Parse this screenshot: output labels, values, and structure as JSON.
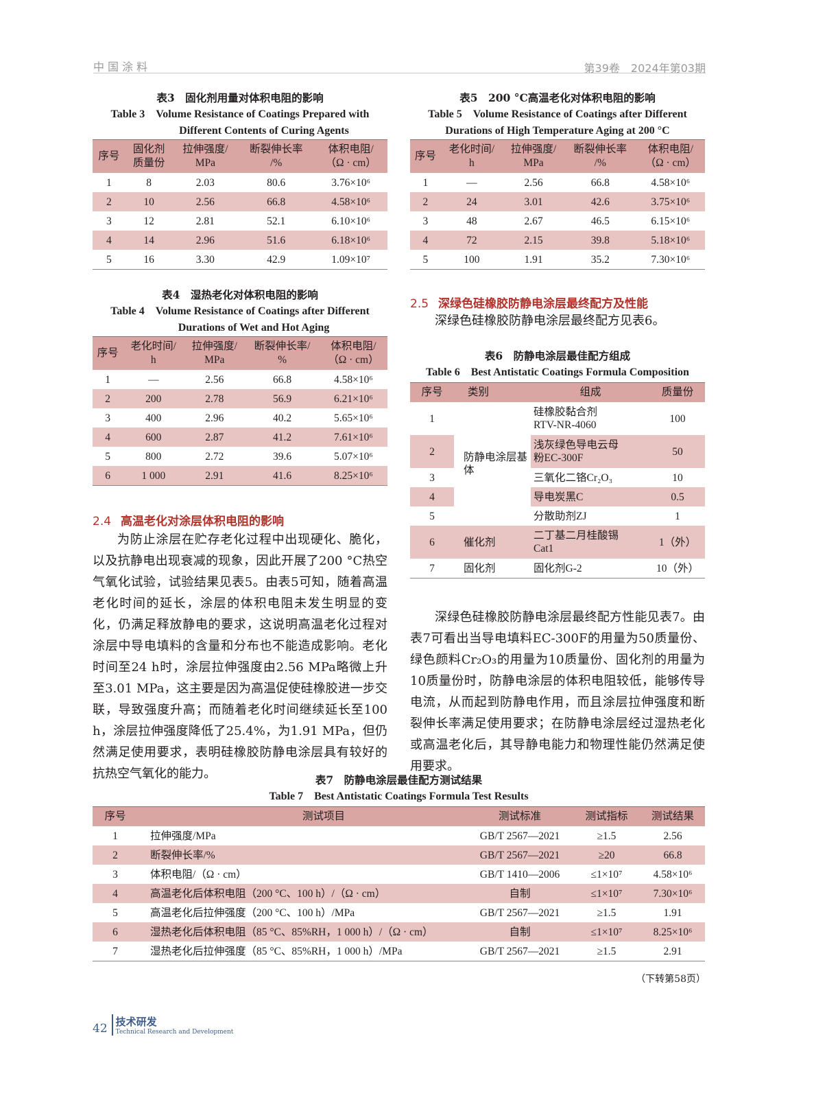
{
  "header": {
    "journal": "中国涂料",
    "issue": "第39卷　2024年第03期"
  },
  "table3": {
    "title_cn": "表3　固化剂用量对体积电阻的影响",
    "title_en1": "Table 3　Volume Resistance of Coatings Prepared with",
    "title_en2": "Different Contents of Curing Agents",
    "headers": [
      [
        "序号"
      ],
      [
        "固化剂",
        "质量份"
      ],
      [
        "拉伸强度/",
        "MPa"
      ],
      [
        "断裂伸长率",
        "/%"
      ],
      [
        "体积电阻/",
        "（Ω · cm）"
      ]
    ],
    "rows": [
      [
        "1",
        "8",
        "2.03",
        "80.6",
        "3.76×10⁶"
      ],
      [
        "2",
        "10",
        "2.56",
        "66.8",
        "4.58×10⁶"
      ],
      [
        "3",
        "12",
        "2.81",
        "52.1",
        "6.10×10⁶"
      ],
      [
        "4",
        "14",
        "2.96",
        "51.6",
        "6.18×10⁶"
      ],
      [
        "5",
        "16",
        "3.30",
        "42.9",
        "1.09×10⁷"
      ]
    ]
  },
  "table4": {
    "title_cn": "表4　湿热老化对体积电阻的影响",
    "title_en1": "Table 4　Volume Resistance of Coatings after Different",
    "title_en2": "Durations of Wet and Hot Aging",
    "headers": [
      [
        "序号"
      ],
      [
        "老化时间/",
        "h"
      ],
      [
        "拉伸强度/",
        "MPa"
      ],
      [
        "断裂伸长率/",
        "%"
      ],
      [
        "体积电阻/",
        "（Ω · cm）"
      ]
    ],
    "rows": [
      [
        "1",
        "—",
        "2.56",
        "66.8",
        "4.58×10⁶"
      ],
      [
        "2",
        "200",
        "2.78",
        "56.9",
        "6.21×10⁶"
      ],
      [
        "3",
        "400",
        "2.96",
        "40.2",
        "5.65×10⁶"
      ],
      [
        "4",
        "600",
        "2.87",
        "41.2",
        "7.61×10⁶"
      ],
      [
        "5",
        "800",
        "2.72",
        "39.6",
        "5.07×10⁶"
      ],
      [
        "6",
        "1 000",
        "2.91",
        "41.6",
        "8.25×10⁶"
      ]
    ]
  },
  "table5": {
    "title_cn": "表5　200 °C高温老化对体积电阻的影响",
    "title_en1": "Table 5　Volume Resistance of Coatings after Different",
    "title_en2": "Durations of High Temperature Aging at 200 °C",
    "headers": [
      [
        "序号"
      ],
      [
        "老化时间/",
        "h"
      ],
      [
        "拉伸强度/",
        "MPa"
      ],
      [
        "断裂伸长率",
        "/%"
      ],
      [
        "体积电阻/",
        "（Ω · cm）"
      ]
    ],
    "rows": [
      [
        "1",
        "—",
        "2.56",
        "66.8",
        "4.58×10⁶"
      ],
      [
        "2",
        "24",
        "3.01",
        "42.6",
        "3.75×10⁶"
      ],
      [
        "3",
        "48",
        "2.67",
        "46.5",
        "6.15×10⁶"
      ],
      [
        "4",
        "72",
        "2.15",
        "39.8",
        "5.18×10⁶"
      ],
      [
        "5",
        "100",
        "1.91",
        "35.2",
        "7.30×10⁶"
      ]
    ]
  },
  "section24": {
    "num": "2.4",
    "title": "高温老化对涂层体积电阻的影响",
    "text": "为防止涂层在贮存老化过程中出现硬化、脆化，以及抗静电出现衰减的现象，因此开展了200 °C热空气氧化试验，试验结果见表5。由表5可知，随着高温老化时间的延长，涂层的体积电阻未发生明显的变化，仍满足释放静电的要求，这说明高温老化过程对涂层中导电填料的含量和分布也不能造成影响。老化时间至24 h时，涂层拉伸强度由2.56 MPa略微上升至3.01 MPa，这主要是因为高温促使硅橡胶进一步交联，导致强度升高；而随着老化时间继续延长至100 h，涂层拉伸强度降低了25.4%，为1.91 MPa，但仍然满足使用要求，表明硅橡胶防静电涂层具有较好的抗热空气氧化的能力。"
  },
  "section25": {
    "num": "2.5",
    "title": "深绿色硅橡胶防静电涂层最终配方及性能",
    "text": "深绿色硅橡胶防静电涂层最终配方见表6。"
  },
  "table6": {
    "title_cn": "表6　防静电涂层最佳配方组成",
    "title_en": "Table 6　Best Antistatic Coatings Formula Composition",
    "headers": [
      "序号",
      "类别",
      "组成",
      "质量份"
    ],
    "category_base": "防静电涂层基体",
    "rows": [
      {
        "no": "1",
        "comp1": "硅橡胶黏合剂",
        "comp2": "RTV-NR-4060",
        "parts": "100"
      },
      {
        "no": "2",
        "comp1": "浅灰绿色导电云母",
        "comp2": "粉EC-300F",
        "parts": "50"
      },
      {
        "no": "3",
        "comp1": "三氧化二铬Cr₂O₃",
        "comp2": "",
        "parts": "10"
      },
      {
        "no": "4",
        "comp1": "导电炭黑C",
        "comp2": "",
        "parts": "0.5"
      },
      {
        "no": "5",
        "comp1": "分散助剂ZJ",
        "comp2": "",
        "parts": "1"
      },
      {
        "no": "6",
        "category": "催化剂",
        "comp1": "二丁基二月桂酸锡",
        "comp2": "Cat1",
        "parts": "1（外）"
      },
      {
        "no": "7",
        "category": "固化剂",
        "comp1": "固化剂G-2",
        "comp2": "",
        "parts": "10（外）"
      }
    ]
  },
  "para_right": "深绿色硅橡胶防静电涂层最终配方性能见表7。由表7可看出当导电填料EC-300F的用量为50质量份、绿色颜料Cr₂O₃的用量为10质量份、固化剂的用量为10质量份时，防静电涂层的体积电阻较低，能够传导电流，从而起到防静电作用，而且涂层拉伸强度和断裂伸长率满足使用要求；在防静电涂层经过湿热老化或高温老化后，其导静电能力和物理性能仍然满足使用要求。",
  "table7": {
    "title_cn": "表7　防静电涂层最佳配方测试结果",
    "title_en": "Table 7　Best Antistatic Coatings Formula Test Results",
    "headers": [
      "序号",
      "测试项目",
      "测试标准",
      "测试指标",
      "测试结果"
    ],
    "rows": [
      [
        "1",
        "拉伸强度/MPa",
        "GB/T 2567—2021",
        "≥1.5",
        "2.56"
      ],
      [
        "2",
        "断裂伸长率/%",
        "GB/T 2567—2021",
        "≥20",
        "66.8"
      ],
      [
        "3",
        "体积电阻/（Ω · cm）",
        "GB/T 1410—2006",
        "≤1×10⁷",
        "4.58×10⁶"
      ],
      [
        "4",
        "高温老化后体积电阻（200 °C、100 h）/（Ω · cm）",
        "自制",
        "≤1×10⁷",
        "7.30×10⁶"
      ],
      [
        "5",
        "高温老化后拉伸强度（200 °C、100 h）/MPa",
        "GB/T 2567—2021",
        "≥1.5",
        "1.91"
      ],
      [
        "6",
        "湿热老化后体积电阻（85 °C、85%RH，1 000 h）/（Ω · cm）",
        "自制",
        "≤1×10⁷",
        "8.25×10⁶"
      ],
      [
        "7",
        "湿热老化后拉伸强度（85 °C、85%RH，1 000 h）/MPa",
        "GB/T 2567—2021",
        "≥1.5",
        "2.91"
      ]
    ]
  },
  "continued": "（下转第58页）",
  "footer": {
    "page": "42",
    "section_cn": "技术研发",
    "section_en": "Technical Research and Development"
  },
  "colors": {
    "accent": "#b2322b",
    "header_row": "#d9a6a4",
    "shaded_row": "#e8c4c2"
  }
}
